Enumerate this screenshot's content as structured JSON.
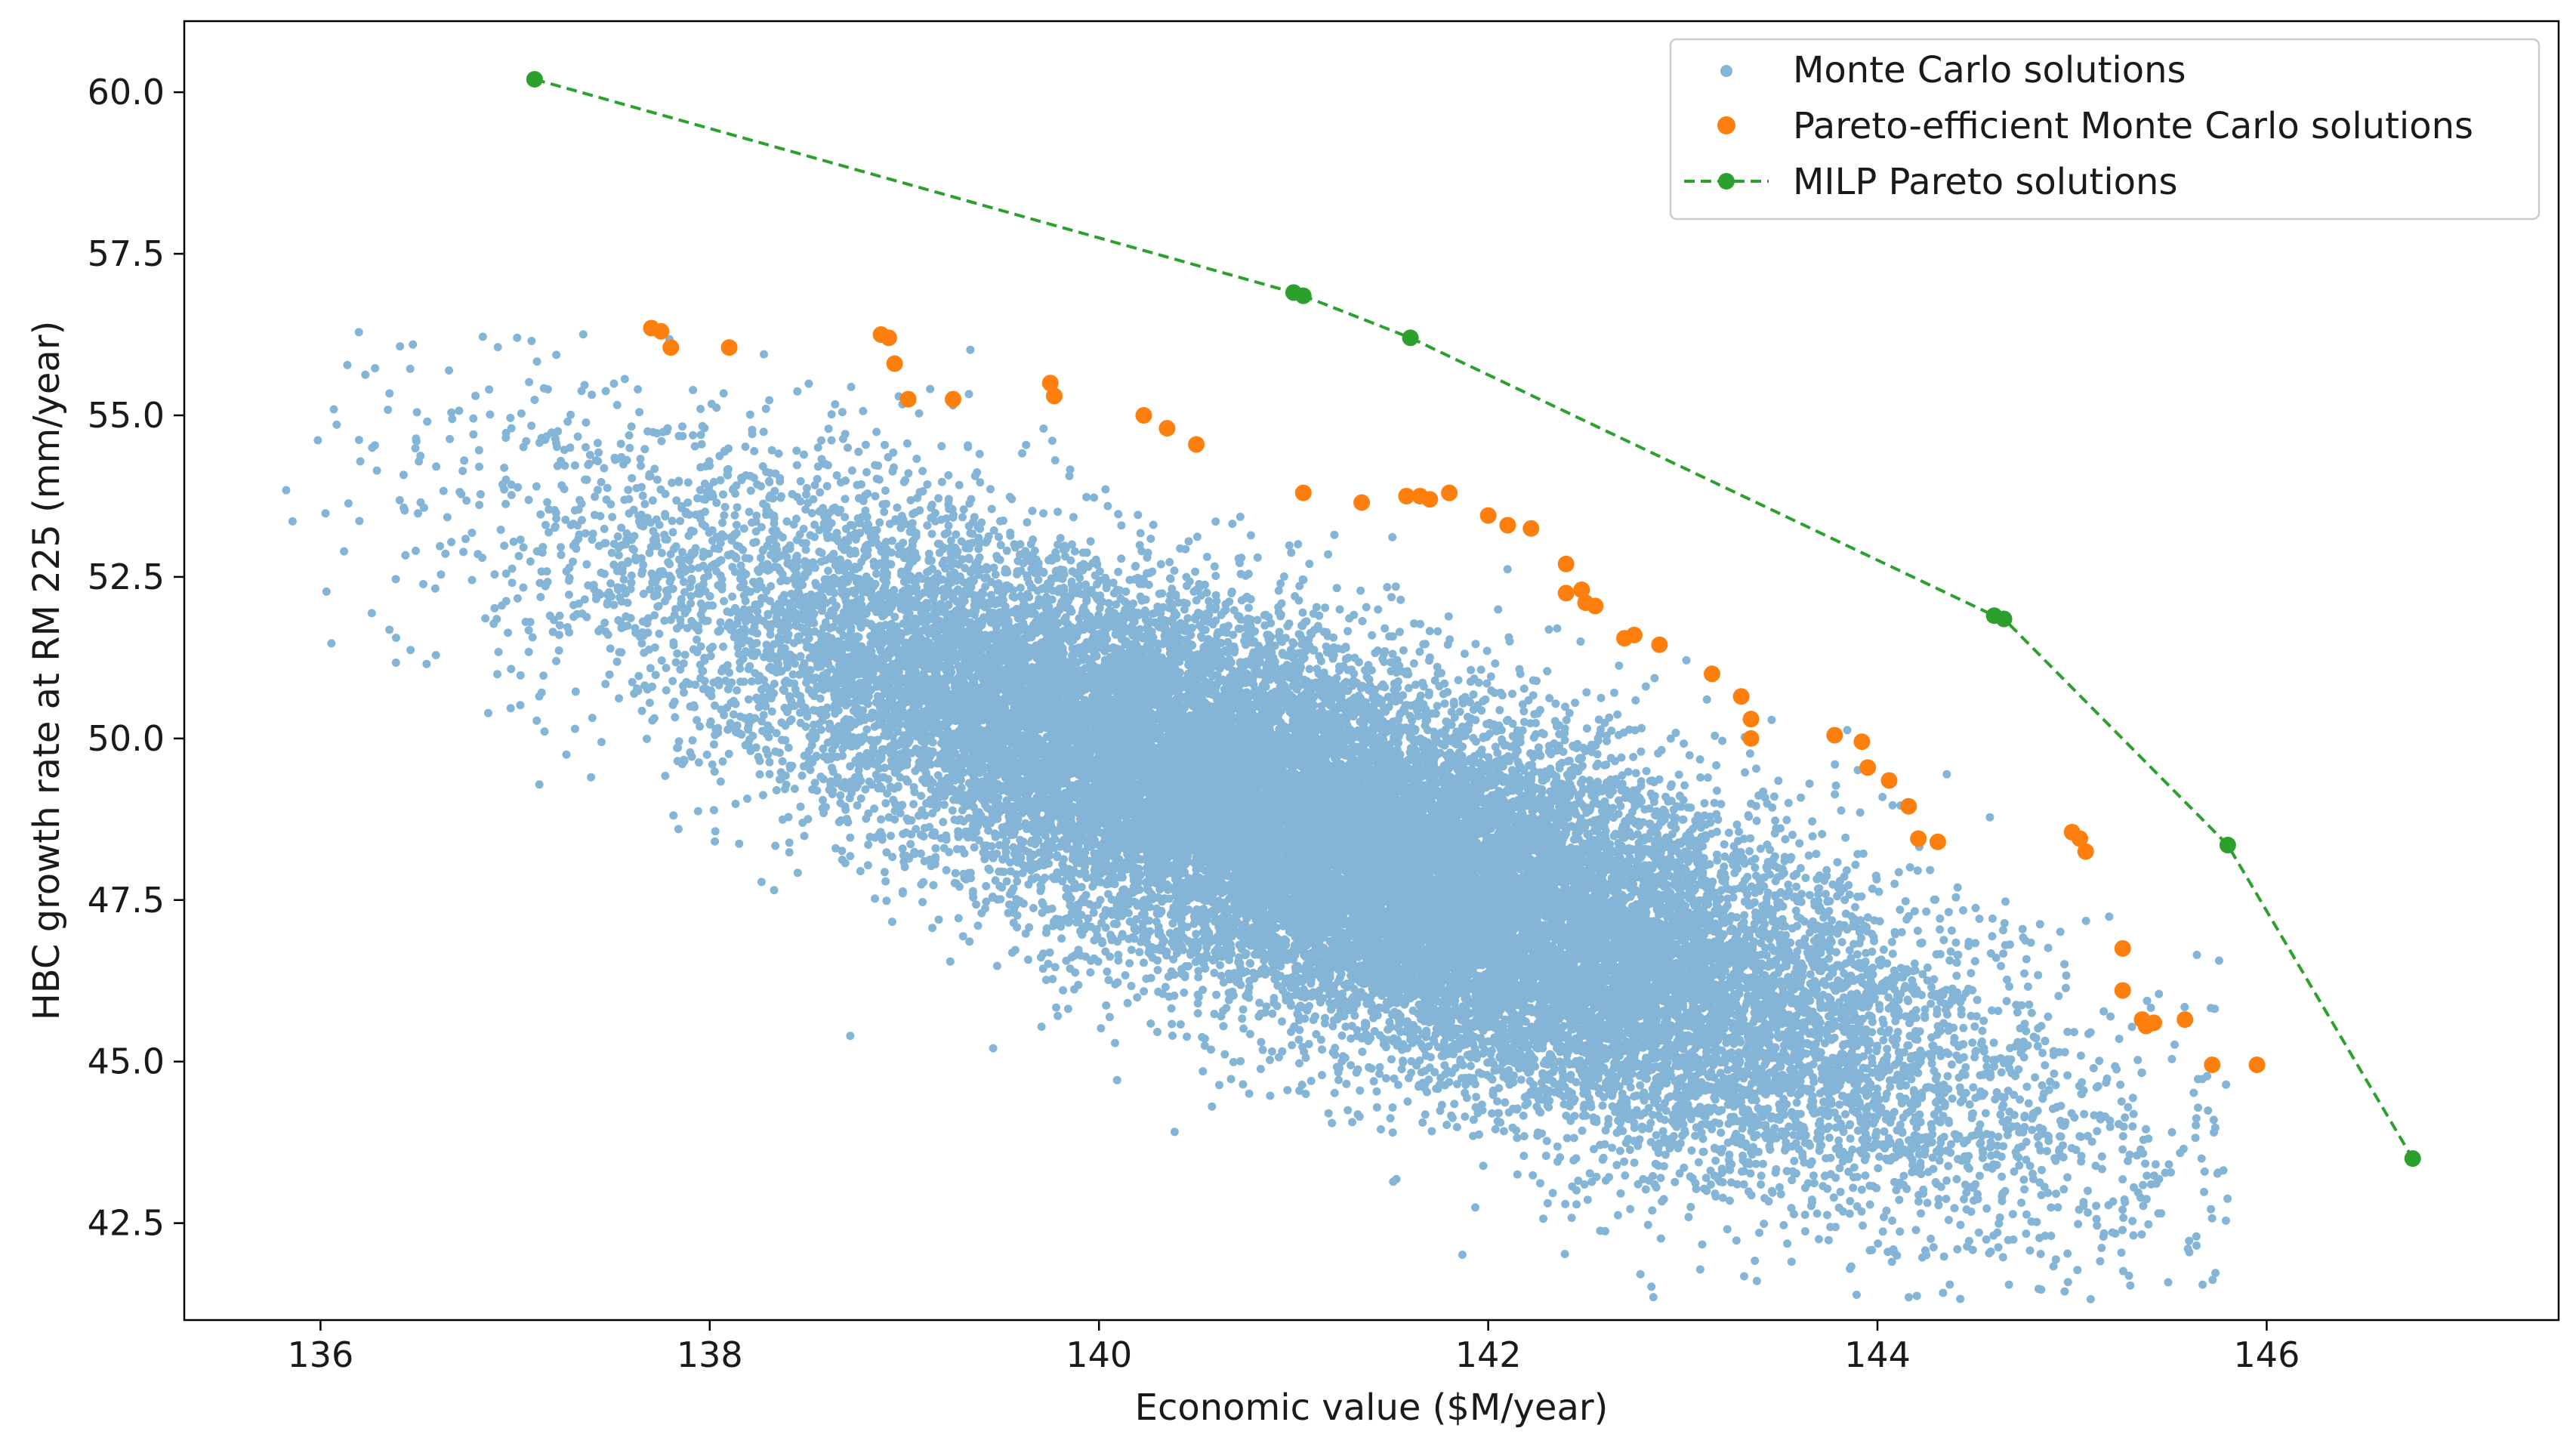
{
  "chart_data": {
    "type": "scatter",
    "title": "",
    "xlabel": "Economic value ($M/year)",
    "ylabel": "HBC growth rate at RM 225 (mm/year)",
    "xlim": [
      135.3,
      147.5
    ],
    "ylim": [
      41.0,
      61.1
    ],
    "xticks": [
      136,
      138,
      140,
      142,
      144,
      146
    ],
    "yticks": [
      42.5,
      45.0,
      47.5,
      50.0,
      52.5,
      55.0,
      57.5,
      60.0
    ],
    "xtick_labels": [
      "136",
      "138",
      "140",
      "142",
      "144",
      "146"
    ],
    "ytick_labels": [
      "42.5",
      "45.0",
      "47.5",
      "50.0",
      "52.5",
      "55.0",
      "57.5",
      "60.0"
    ],
    "grid": false,
    "legend_position": "top-right",
    "series": [
      {
        "name": "Monte Carlo solutions",
        "kind": "scatter-cloud",
        "color": "#1f77b4",
        "note": "dense elliptical cloud of random Monte Carlo solutions",
        "center": [
          141.2,
          48.4
        ],
        "x_extent": [
          135.8,
          145.8
        ],
        "y_extent": [
          41.3,
          56.3
        ],
        "correlation": -0.8
      },
      {
        "name": "Pareto-efficient Monte Carlo solutions",
        "kind": "scatter",
        "color": "#ff7f0e",
        "points": [
          [
            137.7,
            56.35
          ],
          [
            137.75,
            56.3
          ],
          [
            137.8,
            56.05
          ],
          [
            138.1,
            56.05
          ],
          [
            138.88,
            56.25
          ],
          [
            138.92,
            56.2
          ],
          [
            138.95,
            55.8
          ],
          [
            139.02,
            55.25
          ],
          [
            139.25,
            55.25
          ],
          [
            139.75,
            55.5
          ],
          [
            139.77,
            55.3
          ],
          [
            140.23,
            55.0
          ],
          [
            140.35,
            54.8
          ],
          [
            140.5,
            54.55
          ],
          [
            141.05,
            53.8
          ],
          [
            141.35,
            53.65
          ],
          [
            141.58,
            53.75
          ],
          [
            141.65,
            53.75
          ],
          [
            141.7,
            53.7
          ],
          [
            141.8,
            53.8
          ],
          [
            142.0,
            53.45
          ],
          [
            142.1,
            53.3
          ],
          [
            142.22,
            53.25
          ],
          [
            142.4,
            52.7
          ],
          [
            142.4,
            52.25
          ],
          [
            142.48,
            52.3
          ],
          [
            142.5,
            52.1
          ],
          [
            142.55,
            52.05
          ],
          [
            142.7,
            51.55
          ],
          [
            142.75,
            51.6
          ],
          [
            142.88,
            51.45
          ],
          [
            143.15,
            51.0
          ],
          [
            143.3,
            50.65
          ],
          [
            143.35,
            50.3
          ],
          [
            143.35,
            50.0
          ],
          [
            143.78,
            50.05
          ],
          [
            143.92,
            49.95
          ],
          [
            143.95,
            49.55
          ],
          [
            144.06,
            49.35
          ],
          [
            144.16,
            48.95
          ],
          [
            144.21,
            48.45
          ],
          [
            144.31,
            48.4
          ],
          [
            145.0,
            48.55
          ],
          [
            145.04,
            48.45
          ],
          [
            145.07,
            48.25
          ],
          [
            145.26,
            46.75
          ],
          [
            145.26,
            46.1
          ],
          [
            145.36,
            45.65
          ],
          [
            145.38,
            45.55
          ],
          [
            145.42,
            45.6
          ],
          [
            145.58,
            45.65
          ],
          [
            145.72,
            44.95
          ],
          [
            145.95,
            44.95
          ]
        ]
      },
      {
        "name": "MILP Pareto solutions",
        "kind": "line-markers",
        "color": "#2ca02c",
        "linestyle": "dashed",
        "x": [
          137.1,
          141.0,
          141.05,
          141.6,
          144.6,
          144.65,
          145.8,
          146.75
        ],
        "y": [
          60.2,
          56.9,
          56.85,
          56.2,
          51.9,
          51.85,
          48.35,
          43.5
        ]
      }
    ]
  }
}
